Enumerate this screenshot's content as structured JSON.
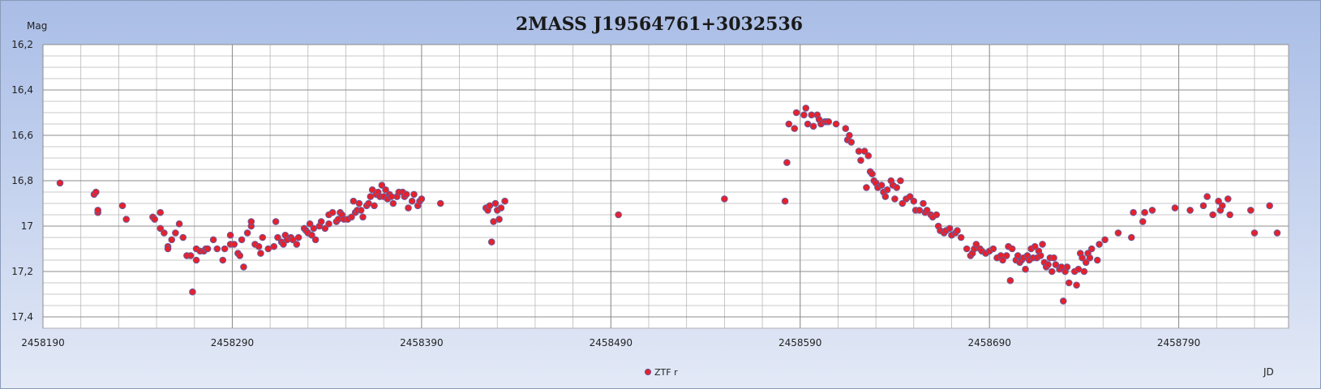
{
  "chart_data": {
    "type": "scatter",
    "title": "2MASS J19564761+3032536",
    "ylabel": "Mag",
    "xlabel": "JD",
    "xlim": [
      2458190,
      2458848
    ],
    "ylim": [
      17.45,
      16.2
    ],
    "y_inverted": true,
    "x_ticks": [
      2458190,
      2458290,
      2458390,
      2458490,
      2458590,
      2458690,
      2458790
    ],
    "x_tick_labels": [
      "2458190",
      "2458290",
      "2458390",
      "2458490",
      "2458590",
      "2458690",
      "2458790"
    ],
    "y_ticks": [
      16.2,
      16.4,
      16.6,
      16.8,
      17.0,
      17.2,
      17.4
    ],
    "y_tick_labels": [
      "16,2",
      "16,4",
      "16,6",
      "16,8",
      "17",
      "17,2",
      "17,4"
    ],
    "grid": true,
    "legend_position": "bottom-center",
    "colors": {
      "marker_fill": "#e8202a",
      "marker_edge": "#6a5a9a",
      "plot_bg": "#ffffff",
      "grid_major": "#8c8c8c",
      "grid_minor": "#b8b8b8"
    },
    "series": [
      {
        "name": "ZTF r",
        "x": [
          2458199,
          2458217,
          2458218,
          2458219,
          2458219,
          2458232,
          2458234,
          2458248,
          2458249,
          2458252,
          2458252,
          2458254,
          2458256,
          2458256,
          2458258,
          2458260,
          2458262,
          2458264,
          2458266,
          2458268,
          2458269,
          2458271,
          2458271,
          2458273,
          2458275,
          2458276,
          2458277,
          2458280,
          2458282,
          2458285,
          2458286,
          2458289,
          2458289,
          2458291,
          2458293,
          2458294,
          2458295,
          2458296,
          2458298,
          2458300,
          2458300,
          2458302,
          2458304,
          2458305,
          2458306,
          2458309,
          2458312,
          2458313,
          2458314,
          2458316,
          2458317,
          2458318,
          2458319,
          2458321,
          2458322,
          2458324,
          2458325,
          2458328,
          2458329,
          2458330,
          2458331,
          2458332,
          2458333,
          2458334,
          2458336,
          2458337,
          2458339,
          2458341,
          2458341,
          2458343,
          2458345,
          2458346,
          2458347,
          2458348,
          2458349,
          2458351,
          2458353,
          2458354,
          2458355,
          2458356,
          2458357,
          2458358,
          2458359,
          2458361,
          2458362,
          2458363,
          2458364,
          2458365,
          2458366,
          2458367,
          2458368,
          2458369,
          2458370,
          2458371,
          2458372,
          2458373,
          2458374,
          2458375,
          2458377,
          2458378,
          2458380,
          2458381,
          2458382,
          2458383,
          2458385,
          2458386,
          2458388,
          2458389,
          2458390,
          2458400,
          2458424,
          2458425,
          2458426,
          2458427,
          2458428,
          2458429,
          2458430,
          2458431,
          2458432,
          2458434,
          2458494,
          2458550,
          2458582,
          2458583,
          2458584,
          2458587,
          2458588,
          2458592,
          2458593,
          2458594,
          2458596,
          2458597,
          2458599,
          2458600,
          2458601,
          2458603,
          2458604,
          2458605,
          2458609,
          2458614,
          2458615,
          2458616,
          2458617,
          2458621,
          2458622,
          2458624,
          2458625,
          2458626,
          2458627,
          2458628,
          2458629,
          2458630,
          2458631,
          2458633,
          2458634,
          2458635,
          2458636,
          2458638,
          2458639,
          2458640,
          2458641,
          2458643,
          2458644,
          2458646,
          2458648,
          2458650,
          2458651,
          2458653,
          2458655,
          2458656,
          2458657,
          2458659,
          2458660,
          2458662,
          2458663,
          2458664,
          2458666,
          2458667,
          2458669,
          2458670,
          2458672,
          2458673,
          2458675,
          2458678,
          2458680,
          2458681,
          2458682,
          2458683,
          2458685,
          2458686,
          2458688,
          2458690,
          2458692,
          2458694,
          2458696,
          2458697,
          2458699,
          2458700,
          2458701,
          2458702,
          2458704,
          2458705,
          2458706,
          2458707,
          2458708,
          2458709,
          2458710,
          2458711,
          2458712,
          2458713,
          2458714,
          2458715,
          2458716,
          2458717,
          2458718,
          2458719,
          2458720,
          2458721,
          2458722,
          2458723,
          2458724,
          2458725,
          2458727,
          2458728,
          2458729,
          2458730,
          2458731,
          2458732,
          2458735,
          2458736,
          2458737,
          2458738,
          2458739,
          2458740,
          2458741,
          2458742,
          2458743,
          2458744,
          2458747,
          2458748,
          2458751,
          2458758,
          2458765,
          2458766,
          2458771,
          2458772,
          2458776,
          2458788,
          2458796,
          2458803,
          2458805,
          2458808,
          2458811,
          2458812,
          2458813,
          2458816,
          2458817,
          2458828,
          2458830,
          2458838,
          2458842
        ],
        "y": [
          16.81,
          16.86,
          16.85,
          16.94,
          16.93,
          16.91,
          16.97,
          16.96,
          16.97,
          17.01,
          16.94,
          17.03,
          17.09,
          17.1,
          17.06,
          17.03,
          16.99,
          17.05,
          17.13,
          17.13,
          17.29,
          17.15,
          17.1,
          17.11,
          17.11,
          17.1,
          17.1,
          17.06,
          17.1,
          17.15,
          17.1,
          17.04,
          17.08,
          17.08,
          17.12,
          17.13,
          17.06,
          17.18,
          17.03,
          17.0,
          16.98,
          17.08,
          17.09,
          17.12,
          17.05,
          17.1,
          17.09,
          16.98,
          17.05,
          17.07,
          17.08,
          17.04,
          17.06,
          17.05,
          17.06,
          17.08,
          17.05,
          17.01,
          17.02,
          17.03,
          16.99,
          17.04,
          17.01,
          17.06,
          17.0,
          16.98,
          17.01,
          16.99,
          16.95,
          16.94,
          16.98,
          16.97,
          16.94,
          16.95,
          16.97,
          16.97,
          16.96,
          16.89,
          16.94,
          16.93,
          16.9,
          16.93,
          16.96,
          16.91,
          16.9,
          16.87,
          16.84,
          16.91,
          16.86,
          16.85,
          16.87,
          16.82,
          16.87,
          16.84,
          16.88,
          16.86,
          16.87,
          16.9,
          16.87,
          16.85,
          16.85,
          16.87,
          16.86,
          16.92,
          16.89,
          16.86,
          16.91,
          16.89,
          16.88,
          16.9,
          16.92,
          16.93,
          16.91,
          17.07,
          16.98,
          16.9,
          16.93,
          16.97,
          16.92,
          16.89,
          16.95,
          16.88,
          16.89,
          16.72,
          16.55,
          16.57,
          16.5,
          16.51,
          16.48,
          16.55,
          16.51,
          16.56,
          16.51,
          16.53,
          16.55,
          16.54,
          16.54,
          16.54,
          16.55,
          16.57,
          16.62,
          16.6,
          16.63,
          16.67,
          16.71,
          16.67,
          16.83,
          16.69,
          16.76,
          16.77,
          16.8,
          16.81,
          16.83,
          16.82,
          16.85,
          16.87,
          16.84,
          16.8,
          16.82,
          16.88,
          16.83,
          16.8,
          16.9,
          16.88,
          16.87,
          16.89,
          16.93,
          16.93,
          16.9,
          16.94,
          16.93,
          16.95,
          16.96,
          16.95,
          17.0,
          17.02,
          17.03,
          17.02,
          17.01,
          17.04,
          17.03,
          17.02,
          17.05,
          17.1,
          17.13,
          17.12,
          17.1,
          17.08,
          17.1,
          17.11,
          17.12,
          17.11,
          17.1,
          17.14,
          17.13,
          17.15,
          17.13,
          17.09,
          17.24,
          17.1,
          17.15,
          17.13,
          17.16,
          17.15,
          17.14,
          17.19,
          17.13,
          17.15,
          17.1,
          17.14,
          17.09,
          17.14,
          17.11,
          17.13,
          17.08,
          17.16,
          17.18,
          17.17,
          17.14,
          17.2,
          17.14,
          17.17,
          17.19,
          17.18,
          17.33,
          17.2,
          17.18,
          17.25,
          17.2,
          17.26,
          17.19,
          17.12,
          17.14,
          17.2,
          17.16,
          17.12,
          17.14,
          17.1,
          17.15,
          17.08,
          17.06,
          17.03,
          17.05,
          16.94,
          16.98,
          16.94,
          16.93,
          16.92,
          16.93,
          16.91,
          16.87,
          16.95,
          16.89,
          16.93,
          16.91,
          16.88,
          16.95,
          16.93,
          17.03,
          16.91,
          17.03
        ]
      }
    ]
  }
}
